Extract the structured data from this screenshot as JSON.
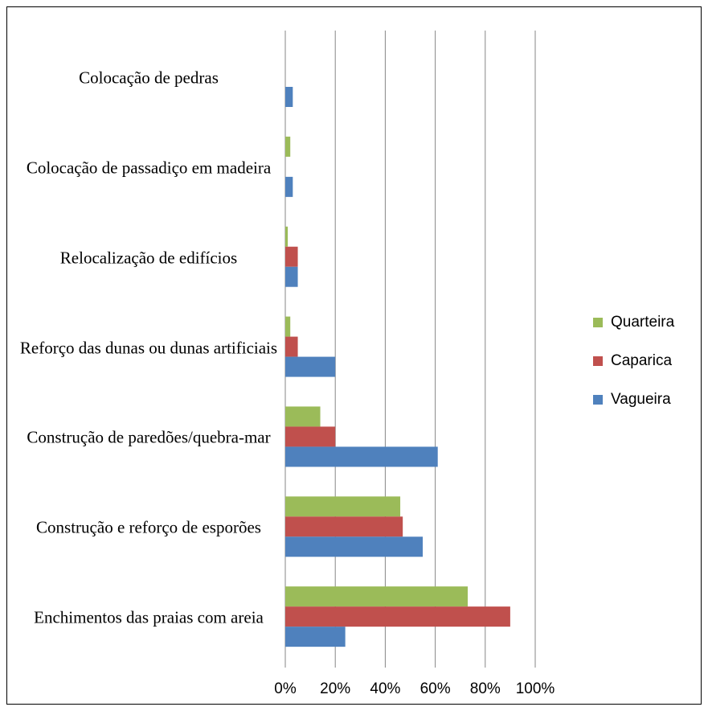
{
  "chart_data": {
    "type": "bar",
    "orientation": "horizontal",
    "categories": [
      "Colocação de pedras",
      "Colocação de passadiço em madeira",
      "Relocalização de edifícios",
      "Reforço das dunas ou dunas artificiais",
      "Construção de paredões/quebra-mar",
      "Construção e reforço de esporões",
      "Enchimentos das praias com areia"
    ],
    "series": [
      {
        "name": "Quarteira",
        "color": "#9bbb59",
        "values": [
          0,
          2,
          1,
          2,
          14,
          46,
          73
        ]
      },
      {
        "name": "Caparica",
        "color": "#c0504d",
        "values": [
          0,
          0,
          5,
          5,
          20,
          47,
          90
        ]
      },
      {
        "name": "Vagueira",
        "color": "#4f81bd",
        "values": [
          3,
          3,
          5,
          20,
          61,
          55,
          24
        ]
      }
    ],
    "xlim": [
      0,
      100
    ],
    "xticks": [
      {
        "value": 0,
        "label": "0%"
      },
      {
        "value": 20,
        "label": "20%"
      },
      {
        "value": 40,
        "label": "40%"
      },
      {
        "value": 60,
        "label": "60%"
      },
      {
        "value": 80,
        "label": "80%"
      },
      {
        "value": 100,
        "label": "100%"
      }
    ],
    "grid": true,
    "legend": "right"
  }
}
